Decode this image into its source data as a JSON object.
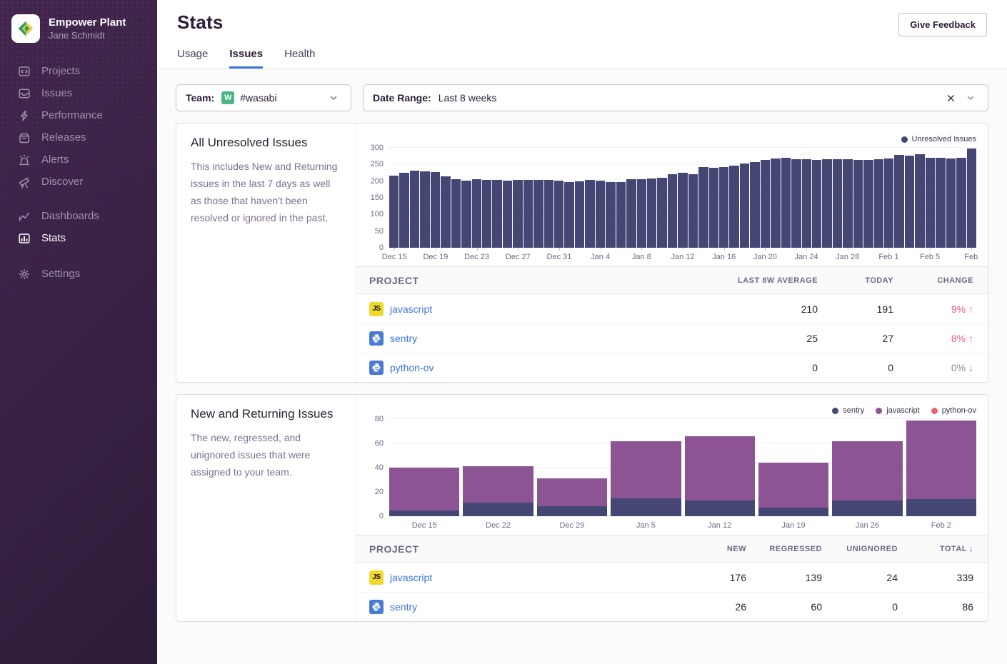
{
  "sidebar": {
    "org_name": "Empower Plant",
    "user_name": "Jane Schmidt",
    "groups": [
      {
        "items": [
          {
            "label": "Projects",
            "icon": "projects"
          },
          {
            "label": "Issues",
            "icon": "issues"
          },
          {
            "label": "Performance",
            "icon": "performance"
          },
          {
            "label": "Releases",
            "icon": "releases"
          },
          {
            "label": "Alerts",
            "icon": "alerts"
          },
          {
            "label": "Discover",
            "icon": "discover"
          }
        ]
      },
      {
        "items": [
          {
            "label": "Dashboards",
            "icon": "dashboards"
          },
          {
            "label": "Stats",
            "icon": "stats",
            "active": true
          }
        ]
      },
      {
        "items": [
          {
            "label": "Settings",
            "icon": "settings"
          }
        ]
      }
    ]
  },
  "header": {
    "title": "Stats",
    "feedback_label": "Give Feedback"
  },
  "tabs": [
    {
      "label": "Usage",
      "active": false
    },
    {
      "label": "Issues",
      "active": true
    },
    {
      "label": "Health",
      "active": false
    }
  ],
  "filters": {
    "team_label": "Team:",
    "team_avatar_letter": "W",
    "team_value": "#wasabi",
    "date_label": "Date Range:",
    "date_value": "Last 8 weeks"
  },
  "panels": {
    "unresolved": {
      "title": "All Unresolved Issues",
      "description": "This includes New and Returning issues in the last 7 days as well as those that haven't been resolved or ignored in the past.",
      "table": {
        "headers": [
          "PROJECT",
          "LAST 8W AVERAGE",
          "TODAY",
          "CHANGE"
        ],
        "rows": [
          {
            "project": "javascript",
            "icon": "js",
            "avg": "210",
            "today": "191",
            "change": "9%",
            "trend": "up",
            "trend_style": "bad"
          },
          {
            "project": "sentry",
            "icon": "python",
            "avg": "25",
            "today": "27",
            "change": "8%",
            "trend": "up",
            "trend_style": "bad"
          },
          {
            "project": "python-ov",
            "icon": "python",
            "avg": "0",
            "today": "0",
            "change": "0%",
            "trend": "down",
            "trend_style": "neutral"
          }
        ]
      }
    },
    "new_returning": {
      "title": "New and Returning Issues",
      "description": "The new, regressed, and unignored issues that were assigned to your team.",
      "table": {
        "headers": [
          "PROJECT",
          "NEW",
          "REGRESSED",
          "UNIGNORED",
          "TOTAL"
        ],
        "sorted_by": "TOTAL",
        "sort_direction": "desc",
        "rows": [
          {
            "project": "javascript",
            "icon": "js",
            "new": "176",
            "regressed": "139",
            "unignored": "24",
            "total": "339"
          },
          {
            "project": "sentry",
            "icon": "python",
            "new": "26",
            "regressed": "60",
            "unignored": "0",
            "total": "86"
          }
        ]
      }
    }
  },
  "chart_data": [
    {
      "type": "bar",
      "title": "All Unresolved Issues",
      "legend": [
        "Unresolved Issues"
      ],
      "legend_position": "top-right",
      "grid": true,
      "ylim": [
        0,
        300
      ],
      "yticks": [
        0,
        50,
        100,
        150,
        200,
        250,
        300
      ],
      "tick_every": 4,
      "x_tick_labels": [
        "Dec 15",
        "Dec 19",
        "Dec 23",
        "Dec 27",
        "Dec 31",
        "Jan 4",
        "Jan 8",
        "Jan 12",
        "Jan 16",
        "Jan 20",
        "Jan 24",
        "Jan 28",
        "Feb 1",
        "Feb 5",
        "Feb"
      ],
      "values": [
        217,
        225,
        231,
        230,
        227,
        214,
        206,
        201,
        205,
        204,
        204,
        202,
        203,
        203,
        203,
        203,
        201,
        198,
        200,
        204,
        201,
        198,
        197,
        205,
        206,
        207,
        209,
        220,
        225,
        221,
        243,
        241,
        242,
        247,
        252,
        258,
        263,
        267,
        269,
        266,
        266,
        263,
        265,
        265,
        265,
        263,
        264,
        265,
        268,
        279,
        277,
        281,
        269,
        269,
        267,
        269,
        297
      ],
      "bar_color": "#444674"
    },
    {
      "type": "bar",
      "stacked": true,
      "title": "New and Returning Issues",
      "legend_position": "top-right",
      "grid": true,
      "ylim": [
        0,
        80
      ],
      "yticks": [
        0,
        20,
        40,
        60,
        80
      ],
      "categories": [
        "Dec 15",
        "Dec 22",
        "Dec 29",
        "Jan 5",
        "Jan 12",
        "Jan 19",
        "Jan 26",
        "Feb 2"
      ],
      "series": [
        {
          "name": "sentry",
          "color": "#444674",
          "values": [
            5,
            11,
            8,
            15,
            13,
            7,
            13,
            14
          ]
        },
        {
          "name": "javascript",
          "color": "#8d5494",
          "values": [
            35,
            30,
            23,
            47,
            53,
            37,
            49,
            65
          ]
        },
        {
          "name": "python-ov",
          "color": "#e9626e",
          "values": [
            0,
            0,
            0,
            0,
            0,
            0,
            0,
            0
          ]
        }
      ]
    }
  ],
  "colors": {
    "accent_blue": "#3c74db",
    "bar_dark": "#444674",
    "bar_purple": "#8d5494",
    "legend_pink": "#e9626e",
    "change_bad": "#ef5e74",
    "change_neutral": "#8d8399",
    "team_avatar_green": "#4cb584",
    "js_icon_yellow": "#f1d831",
    "python_icon_blue": "#4a7bd0"
  }
}
